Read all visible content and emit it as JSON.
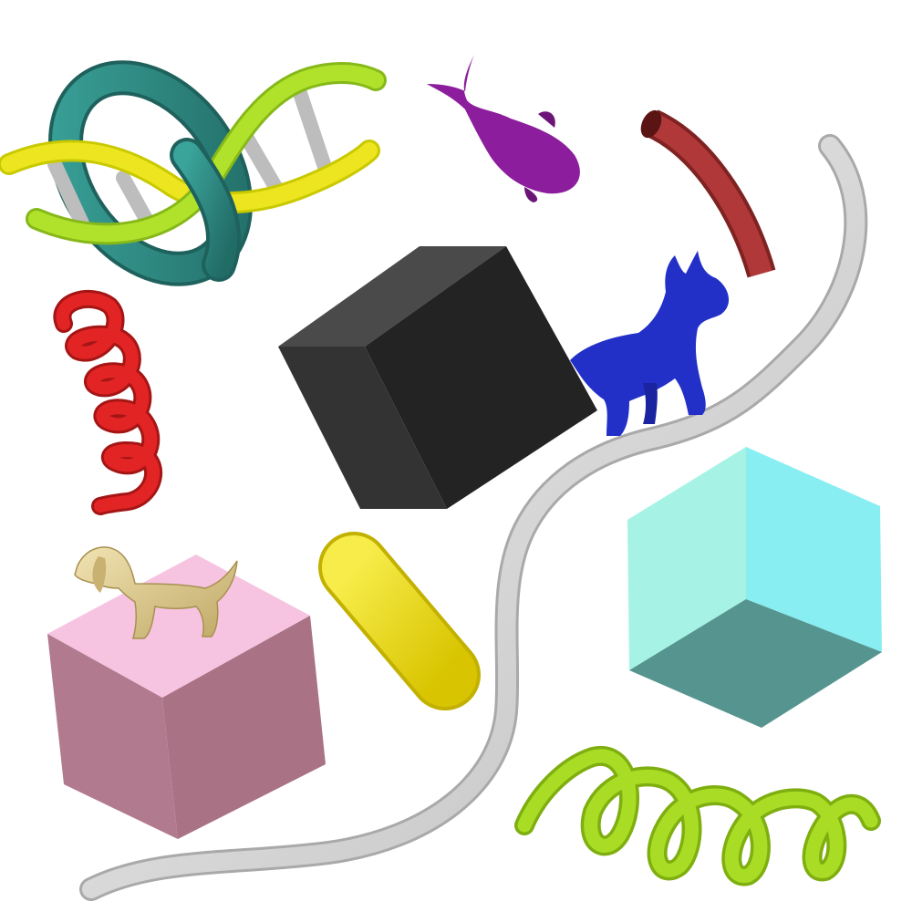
{
  "scene": {
    "background": "#ffffff",
    "objects": [
      {
        "name": "dna-double-helix",
        "colors": [
          "#e6e619",
          "#a6dc28",
          "#c4c4c4"
        ]
      },
      {
        "name": "torus-ring",
        "colors": [
          "#2e8f87"
        ]
      },
      {
        "name": "whale-figure",
        "colors": [
          "#8c1d9c"
        ]
      },
      {
        "name": "curved-tube",
        "colors": [
          "#a83232"
        ]
      },
      {
        "name": "long-wire",
        "colors": [
          "#dcdcdc"
        ]
      },
      {
        "name": "red-coil-spring",
        "colors": [
          "#dd2020"
        ]
      },
      {
        "name": "black-cube",
        "colors": [
          "#2b2b2b"
        ]
      },
      {
        "name": "cat-figure",
        "colors": [
          "#2230c8"
        ]
      },
      {
        "name": "dog-figure",
        "colors": [
          "#d9c48a"
        ]
      },
      {
        "name": "pink-cube",
        "colors": [
          "#f5bedd"
        ]
      },
      {
        "name": "yellow-capsule",
        "colors": [
          "#f0df1d"
        ]
      },
      {
        "name": "cyan-cube",
        "colors": [
          "#7ff0ee"
        ]
      },
      {
        "name": "green-coil-spring",
        "colors": [
          "#a6dc22"
        ]
      }
    ]
  }
}
